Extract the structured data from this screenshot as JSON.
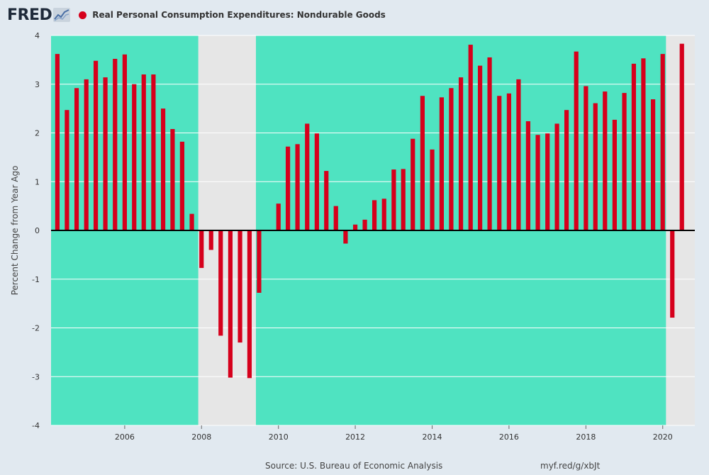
{
  "header": {
    "logo": "FRED",
    "series_title": "Real Personal Consumption Expenditures: Nondurable Goods",
    "series_color": "#d6001c"
  },
  "footer": {
    "source": "Source: U.S. Bureau of Economic Analysis",
    "url": "myf.red/g/xbJt"
  },
  "chart_data": {
    "type": "bar",
    "ylabel": "Percent Change from Year Ago",
    "xlabel": "",
    "ylim": [
      -4,
      4
    ],
    "xlim": [
      "2004-02-01",
      "2020-11-01"
    ],
    "yticks": [
      -4,
      -3,
      -2,
      -1,
      0,
      1,
      2,
      3,
      4
    ],
    "xticks": [
      "2006",
      "2008",
      "2010",
      "2012",
      "2014",
      "2016",
      "2018",
      "2020"
    ],
    "grid": true,
    "bar_color": "#d6001c",
    "plot_background": "#4fe3c1",
    "recession_color": "#e6e6e6",
    "recessions": [
      [
        "2007-12-01",
        "2009-06-01"
      ],
      [
        "2020-02-01",
        "2020-11-01"
      ]
    ],
    "series": [
      {
        "name": "Real Personal Consumption Expenditures: Nondurable Goods",
        "x": [
          "2004-04-01",
          "2004-07-01",
          "2004-10-01",
          "2005-01-01",
          "2005-04-01",
          "2005-07-01",
          "2005-10-01",
          "2006-01-01",
          "2006-04-01",
          "2006-07-01",
          "2006-10-01",
          "2007-01-01",
          "2007-04-01",
          "2007-07-01",
          "2007-10-01",
          "2008-01-01",
          "2008-04-01",
          "2008-07-01",
          "2008-10-01",
          "2009-01-01",
          "2009-04-01",
          "2009-07-01",
          "2009-10-01",
          "2010-01-01",
          "2010-04-01",
          "2010-07-01",
          "2010-10-01",
          "2011-01-01",
          "2011-04-01",
          "2011-07-01",
          "2011-10-01",
          "2012-01-01",
          "2012-04-01",
          "2012-07-01",
          "2012-10-01",
          "2013-01-01",
          "2013-04-01",
          "2013-07-01",
          "2013-10-01",
          "2014-01-01",
          "2014-04-01",
          "2014-07-01",
          "2014-10-01",
          "2015-01-01",
          "2015-04-01",
          "2015-07-01",
          "2015-10-01",
          "2016-01-01",
          "2016-04-01",
          "2016-07-01",
          "2016-10-01",
          "2017-01-01",
          "2017-04-01",
          "2017-07-01",
          "2017-10-01",
          "2018-01-01",
          "2018-04-01",
          "2018-07-01",
          "2018-10-01",
          "2019-01-01",
          "2019-04-01",
          "2019-07-01",
          "2019-10-01",
          "2020-01-01",
          "2020-04-01",
          "2020-07-01"
        ],
        "values": [
          3.62,
          2.47,
          2.92,
          3.1,
          3.48,
          3.14,
          3.52,
          3.61,
          3.0,
          3.2,
          3.2,
          2.5,
          2.08,
          1.82,
          0.34,
          -0.77,
          -0.4,
          -2.16,
          -3.02,
          -2.3,
          -3.03,
          -1.28,
          0.0,
          0.55,
          1.72,
          1.77,
          2.19,
          1.99,
          1.22,
          0.5,
          -0.27,
          0.12,
          0.22,
          0.62,
          0.65,
          1.25,
          1.26,
          1.88,
          2.76,
          1.66,
          2.73,
          2.92,
          3.14,
          3.81,
          3.38,
          3.55,
          2.76,
          2.81,
          3.1,
          2.24,
          1.96,
          1.99,
          2.19,
          2.47,
          3.67,
          2.96,
          2.61,
          2.85,
          2.27,
          2.82,
          3.42,
          3.53,
          2.69,
          3.62,
          -1.79,
          3.83
        ]
      }
    ]
  }
}
